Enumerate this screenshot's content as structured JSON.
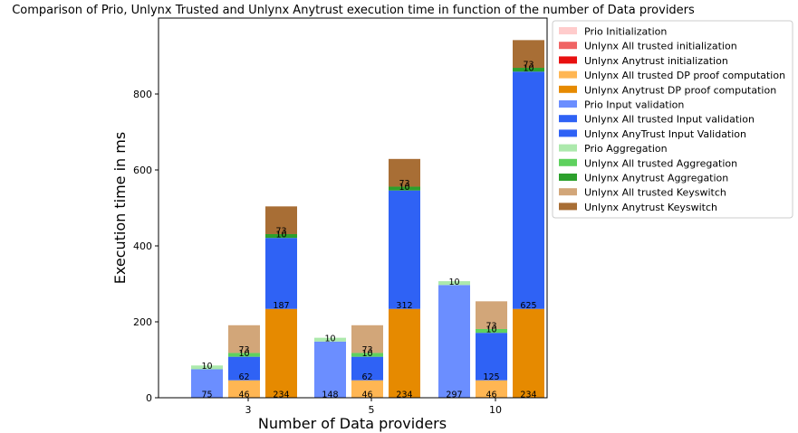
{
  "chart_data": {
    "type": "bar",
    "title": "Comparison of Prio, Unlynx Trusted and Unlynx Anytrust execution time in function of the number of Data providers",
    "xlabel": "Number of Data providers",
    "ylabel": "Execution time in ms",
    "categories": [
      "3",
      "5",
      "10"
    ],
    "ylim": [
      0,
      1000
    ],
    "yticks": [
      0,
      200,
      400,
      600,
      800
    ],
    "grid": false,
    "legend_position": "outside-right-top",
    "bar_groups": [
      {
        "label": "Prio",
        "segments": [
          "Prio Initialization",
          "Prio Input validation",
          "Prio Aggregation"
        ]
      },
      {
        "label": "Unlynx All trusted",
        "segments": [
          "Unlynx All trusted initialization",
          "Unlynx All trusted DP proof computation",
          "Unlynx All trusted Input validation",
          "Unlynx All trusted Aggregation",
          "Unlynx All trusted Keyswitch"
        ]
      },
      {
        "label": "Unlynx Anytrust",
        "segments": [
          "Unlynx Anytrust initialization",
          "Unlynx Anytrust DP proof computation",
          "Unlynx AnyTrust Input Validation",
          "Unlynx Anytrust Aggregation",
          "Unlynx Anytrust Keyswitch"
        ]
      }
    ],
    "series": [
      {
        "name": "Prio Initialization",
        "color": "#ffcccc",
        "values": [
          0,
          0,
          0
        ],
        "labels": [
          "",
          "",
          ""
        ]
      },
      {
        "name": "Unlynx All trusted initialization",
        "color": "#f06464",
        "values": [
          0,
          0,
          0
        ],
        "labels": [
          "",
          "",
          ""
        ]
      },
      {
        "name": "Unlynx Anytrust initialization",
        "color": "#e81010",
        "values": [
          0,
          0,
          0
        ],
        "labels": [
          "",
          "",
          ""
        ]
      },
      {
        "name": "Unlynx All trusted DP proof computation",
        "color": "#ffb653",
        "values": [
          46,
          46,
          46
        ],
        "labels": [
          "46",
          "46",
          "46"
        ]
      },
      {
        "name": "Unlynx Anytrust DP proof computation",
        "color": "#e68a00",
        "values": [
          234,
          234,
          234
        ],
        "labels": [
          "234",
          "234",
          "234"
        ]
      },
      {
        "name": "Prio Input validation",
        "color": "#6b8eff",
        "values": [
          75,
          148,
          297
        ],
        "labels": [
          "75",
          "148",
          "297"
        ]
      },
      {
        "name": "Unlynx All trusted Input validation",
        "color": "#2f62f5",
        "values": [
          62,
          62,
          125
        ],
        "labels": [
          "62",
          "62",
          "125"
        ]
      },
      {
        "name": "Unlynx AnyTrust Input Validation",
        "color": "#2f62f5",
        "values": [
          187,
          312,
          625
        ],
        "labels": [
          "187",
          "312",
          "625"
        ]
      },
      {
        "name": "Prio Aggregation",
        "color": "#ace9ac",
        "values": [
          10,
          10,
          10
        ],
        "labels": [
          "10",
          "10",
          "10"
        ]
      },
      {
        "name": "Unlynx All trusted Aggregation",
        "color": "#5ed15e",
        "values": [
          10,
          10,
          10
        ],
        "labels": [
          "10",
          "10",
          "10"
        ]
      },
      {
        "name": "Unlynx Anytrust Aggregation",
        "color": "#2ca02c",
        "values": [
          10,
          10,
          10
        ],
        "labels": [
          "10",
          "10",
          "10"
        ]
      },
      {
        "name": "Unlynx All trusted Keyswitch",
        "color": "#d2a679",
        "values": [
          73,
          73,
          73
        ],
        "labels": [
          "73",
          "73",
          "73"
        ]
      },
      {
        "name": "Unlynx Anytrust Keyswitch",
        "color": "#a86e35",
        "values": [
          73,
          73,
          73
        ],
        "labels": [
          "73",
          "73",
          "73"
        ]
      }
    ]
  }
}
